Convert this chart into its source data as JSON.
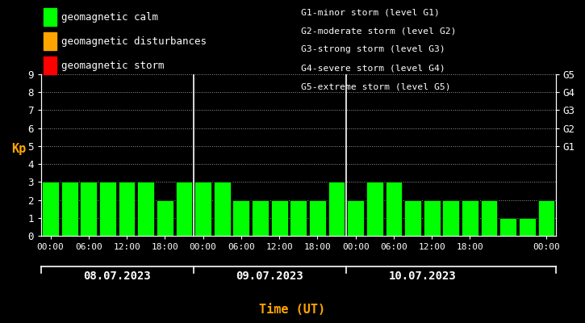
{
  "background_color": "#000000",
  "bar_color_calm": "#00ff00",
  "bar_color_disturbance": "#ffa500",
  "bar_color_storm": "#ff0000",
  "text_color": "#ffffff",
  "xlabel_color": "#ffa500",
  "ylabel_color": "#ffa500",
  "grid_color": "#ffffff",
  "bar_edge_color": "#000000",
  "kp_values": [
    3,
    3,
    3,
    3,
    3,
    3,
    2,
    3,
    3,
    3,
    2,
    2,
    2,
    2,
    2,
    3,
    2,
    3,
    3,
    2,
    2,
    2,
    2,
    2,
    1,
    1,
    2
  ],
  "ylim": [
    0,
    9
  ],
  "yticks": [
    0,
    1,
    2,
    3,
    4,
    5,
    6,
    7,
    8,
    9
  ],
  "ylabel": "Kp",
  "xlabel": "Time (UT)",
  "legend_items": [
    {
      "label": "geomagnetic calm",
      "color": "#00ff00"
    },
    {
      "label": "geomagnetic disturbances",
      "color": "#ffa500"
    },
    {
      "label": "geomagnetic storm",
      "color": "#ff0000"
    }
  ],
  "right_labels": [
    {
      "y": 5,
      "text": "G1"
    },
    {
      "y": 6,
      "text": "G2"
    },
    {
      "y": 7,
      "text": "G3"
    },
    {
      "y": 8,
      "text": "G4"
    },
    {
      "y": 9,
      "text": "G5"
    }
  ],
  "right_annotations": [
    "G1-minor storm (level G1)",
    "G2-moderate storm (level G2)",
    "G3-strong storm (level G3)",
    "G4-severe storm (level G4)",
    "G5-extreme storm (level G5)"
  ],
  "day_labels": [
    "08.07.2023",
    "09.07.2023",
    "10.07.2023"
  ],
  "vline_positions": [
    8,
    16
  ],
  "n_bars": 27,
  "bar_width": 0.88
}
